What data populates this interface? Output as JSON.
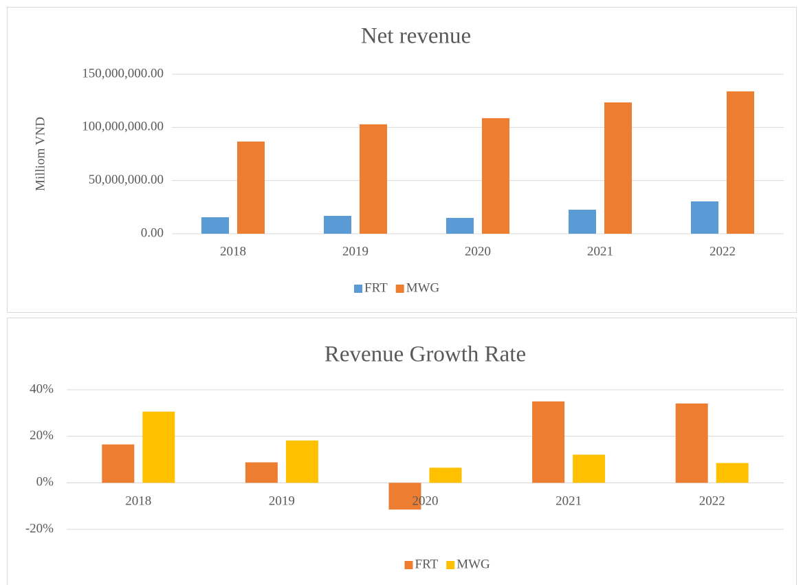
{
  "chart_data": [
    {
      "type": "bar",
      "title": "Net revenue",
      "y_label": "Milliom VND",
      "categories": [
        "2018",
        "2019",
        "2020",
        "2021",
        "2022"
      ],
      "series": [
        {
          "name": "FRT",
          "color": "#5b9bd5",
          "values": [
            15500000,
            16800000,
            14900000,
            22600000,
            30400000
          ]
        },
        {
          "name": "MWG",
          "color": "#ed7d31",
          "values": [
            86700000,
            102900000,
            108700000,
            123500000,
            133900000
          ]
        }
      ],
      "ylim": [
        0,
        150000000
      ],
      "yticks": [
        {
          "value": 0,
          "label": "0.00"
        },
        {
          "value": 50000000,
          "label": "50,000,000.00"
        },
        {
          "value": 100000000,
          "label": "100,000,000.00"
        },
        {
          "value": 150000000,
          "label": "150,000,000.00"
        }
      ],
      "grid": true,
      "legend": "bottom"
    },
    {
      "type": "bar",
      "title": "Revenue Growth Rate",
      "categories": [
        "2018",
        "2019",
        "2020",
        "2021",
        "2022"
      ],
      "series": [
        {
          "name": "FRT",
          "color": "#ed7d31",
          "values": [
            16.5,
            8.8,
            -11.5,
            35,
            34.1
          ]
        },
        {
          "name": "MWG",
          "color": "#ffc000",
          "values": [
            30.6,
            18.2,
            6.5,
            12.1,
            8.5
          ]
        }
      ],
      "ylim": [
        -20,
        40
      ],
      "yticks": [
        {
          "value": -20,
          "label": "-20%"
        },
        {
          "value": 0,
          "label": "0%"
        },
        {
          "value": 20,
          "label": "20%"
        },
        {
          "value": 40,
          "label": "40%"
        }
      ],
      "grid": true,
      "legend": "bottom"
    }
  ]
}
